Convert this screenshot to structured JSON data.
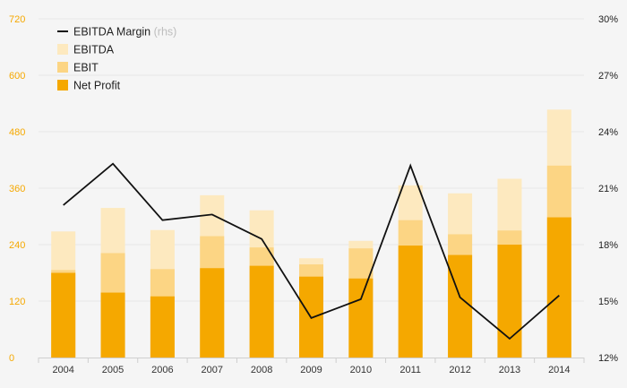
{
  "chart_data": {
    "type": "bar",
    "categories": [
      "2004",
      "2005",
      "2006",
      "2007",
      "2008",
      "2009",
      "2010",
      "2011",
      "2012",
      "2013",
      "2014"
    ],
    "series": [
      {
        "name": "Net Profit",
        "kind": "bar",
        "color": "#f5a800",
        "values": [
          180,
          138,
          130,
          190,
          195,
          172,
          168,
          238,
          218,
          240,
          298
        ]
      },
      {
        "name": "EBIT",
        "kind": "bar",
        "color": "#fcd584",
        "values": [
          186,
          222,
          188,
          258,
          234,
          198,
          232,
          292,
          262,
          270,
          408
        ]
      },
      {
        "name": "EBITDA",
        "kind": "bar",
        "color": "#fde9bf",
        "values": [
          268,
          318,
          271,
          345,
          313,
          211,
          248,
          366,
          349,
          380,
          527
        ]
      },
      {
        "name": "EBITDA Margin",
        "kind": "line",
        "axis": "right",
        "color": "#111111",
        "values": [
          20.1,
          22.3,
          19.3,
          19.6,
          18.3,
          14.1,
          15.1,
          22.2,
          15.2,
          13.0,
          15.3
        ]
      }
    ],
    "left_axis": {
      "min": 0,
      "max": 720,
      "ticks": [
        "0",
        "120",
        "240",
        "360",
        "480",
        "600",
        "720"
      ],
      "color": "#f5a800"
    },
    "right_axis": {
      "min": 12,
      "max": 30,
      "ticks": [
        "12%",
        "15%",
        "18%",
        "21%",
        "24%",
        "27%",
        "30%"
      ]
    },
    "legend": {
      "placement": "top-left",
      "items": [
        {
          "label": "EBITDA Margin",
          "suffix": "(rhs)",
          "swatch": "line",
          "color": "#111111"
        },
        {
          "label": "EBITDA",
          "swatch": "box",
          "color": "#fde9bf"
        },
        {
          "label": "EBIT",
          "swatch": "box",
          "color": "#fcd584"
        },
        {
          "label": "Net Profit",
          "swatch": "box",
          "color": "#f5a800"
        }
      ]
    },
    "grid": true,
    "title": "",
    "xlabel": "",
    "ylabel": ""
  }
}
